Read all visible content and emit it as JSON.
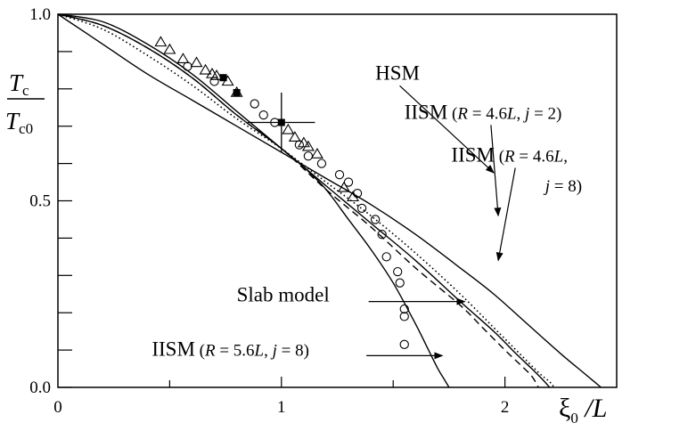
{
  "chart_data": {
    "type": "line",
    "xlabel_main": "ξ",
    "xlabel_sub": "0",
    "xlabel_tail": " /L",
    "ylabel_num_main": "T",
    "ylabel_num_sub": "c",
    "ylabel_den_main": "T",
    "ylabel_den_sub": "c0",
    "xlim": [
      0,
      2.5
    ],
    "ylim": [
      0,
      1.0
    ],
    "x_ticks": [
      {
        "value": 0,
        "label": "0"
      },
      {
        "value": 1,
        "label": "1"
      },
      {
        "value": 2,
        "label": "2"
      }
    ],
    "y_ticks": [
      {
        "value": 0.0,
        "label": "0.0"
      },
      {
        "value": 0.5,
        "label": "0.5"
      },
      {
        "value": 1.0,
        "label": "1.0"
      }
    ],
    "y_minor_ticks": [
      0.1,
      0.2,
      0.3,
      0.4,
      0.6,
      0.7,
      0.8,
      0.9
    ],
    "x_minor_ticks": [
      0.5,
      1.5
    ],
    "series": [
      {
        "name": "HSM",
        "style": "solid",
        "x": [
          0,
          0.2,
          0.4,
          0.6,
          0.8,
          1.0,
          1.2,
          1.4,
          1.6,
          1.8,
          1.95,
          2.1,
          2.25,
          2.35,
          2.4,
          2.43
        ],
        "y": [
          1.0,
          0.92,
          0.84,
          0.77,
          0.7,
          0.63,
          0.56,
          0.49,
          0.41,
          0.32,
          0.25,
          0.17,
          0.09,
          0.04,
          0.015,
          0.0
        ]
      },
      {
        "name": "IISM (R = 4.6L, j = 2)",
        "style": "dotted",
        "x": [
          0,
          0.2,
          0.4,
          0.6,
          0.8,
          1.0,
          1.2,
          1.4,
          1.6,
          1.8,
          1.95,
          2.05,
          2.15,
          2.2,
          2.22
        ],
        "y": [
          1.0,
          0.96,
          0.89,
          0.81,
          0.72,
          0.64,
          0.55,
          0.46,
          0.36,
          0.25,
          0.16,
          0.1,
          0.04,
          0.015,
          0.0
        ]
      },
      {
        "name": "IISM (R = 4.6L, j = 8)",
        "style": "solid",
        "x": [
          0,
          0.2,
          0.4,
          0.6,
          0.8,
          1.0,
          1.2,
          1.4,
          1.6,
          1.8,
          1.95,
          2.05,
          2.12,
          2.17,
          2.2
        ],
        "y": [
          1.0,
          0.97,
          0.91,
          0.83,
          0.73,
          0.64,
          0.54,
          0.44,
          0.34,
          0.23,
          0.15,
          0.09,
          0.05,
          0.02,
          0.0
        ]
      },
      {
        "name": "Slab model",
        "style": "dashed",
        "x": [
          0,
          0.2,
          0.4,
          0.6,
          0.8,
          1.0,
          1.2,
          1.4,
          1.6,
          1.8,
          1.9,
          2.0,
          2.07,
          2.12,
          2.15
        ],
        "y": [
          1.0,
          0.97,
          0.91,
          0.83,
          0.73,
          0.64,
          0.53,
          0.43,
          0.32,
          0.22,
          0.16,
          0.1,
          0.06,
          0.03,
          0.0
        ]
      },
      {
        "name": "IISM (R = 5.6L, j = 8)",
        "style": "solid",
        "x": [
          0,
          0.2,
          0.4,
          0.6,
          0.8,
          1.0,
          1.1,
          1.2,
          1.3,
          1.4,
          1.5,
          1.6,
          1.65,
          1.7,
          1.73,
          1.75
        ],
        "y": [
          1.0,
          0.98,
          0.92,
          0.84,
          0.74,
          0.64,
          0.59,
          0.53,
          0.45,
          0.37,
          0.28,
          0.17,
          0.11,
          0.05,
          0.02,
          0.0
        ]
      }
    ],
    "circles": [
      {
        "x": 0.58,
        "y": 0.86
      },
      {
        "x": 0.7,
        "y": 0.82
      },
      {
        "x": 0.88,
        "y": 0.76
      },
      {
        "x": 0.92,
        "y": 0.73
      },
      {
        "x": 0.97,
        "y": 0.71
      },
      {
        "x": 1.08,
        "y": 0.65
      },
      {
        "x": 1.12,
        "y": 0.62
      },
      {
        "x": 1.18,
        "y": 0.6
      },
      {
        "x": 1.26,
        "y": 0.57
      },
      {
        "x": 1.3,
        "y": 0.55
      },
      {
        "x": 1.34,
        "y": 0.52
      },
      {
        "x": 1.36,
        "y": 0.48
      },
      {
        "x": 1.42,
        "y": 0.45
      },
      {
        "x": 1.45,
        "y": 0.41
      },
      {
        "x": 1.47,
        "y": 0.35
      },
      {
        "x": 1.52,
        "y": 0.31
      },
      {
        "x": 1.53,
        "y": 0.28
      },
      {
        "x": 1.55,
        "y": 0.21
      },
      {
        "x": 1.55,
        "y": 0.19
      },
      {
        "x": 1.55,
        "y": 0.115
      }
    ],
    "triangles": [
      {
        "x": 0.46,
        "y": 0.925
      },
      {
        "x": 0.5,
        "y": 0.905
      },
      {
        "x": 0.56,
        "y": 0.88
      },
      {
        "x": 0.62,
        "y": 0.87
      },
      {
        "x": 0.66,
        "y": 0.85
      },
      {
        "x": 0.69,
        "y": 0.84
      },
      {
        "x": 0.71,
        "y": 0.835
      },
      {
        "x": 0.76,
        "y": 0.82
      },
      {
        "x": 0.8,
        "y": 0.79
      },
      {
        "x": 1.03,
        "y": 0.69
      },
      {
        "x": 1.06,
        "y": 0.67
      },
      {
        "x": 1.1,
        "y": 0.655
      },
      {
        "x": 1.12,
        "y": 0.645
      },
      {
        "x": 1.16,
        "y": 0.625
      },
      {
        "x": 1.28,
        "y": 0.535
      },
      {
        "x": 1.32,
        "y": 0.51
      }
    ],
    "squares": [
      {
        "x": 0.74,
        "y": 0.83
      },
      {
        "x": 0.8,
        "y": 0.79
      },
      {
        "x": 1.0,
        "y": 0.71
      }
    ],
    "errorbar": {
      "x": 1.0,
      "y": 0.71,
      "xerr": 0.15,
      "yerr": 0.08
    },
    "annotations": [
      {
        "segments": [
          {
            "text": "HSM",
            "style": "normal"
          }
        ],
        "label_x": 1.42,
        "label_y": 0.825,
        "arrow_to_x": 1.95,
        "arrow_to_y": 0.575
      },
      {
        "segments": [
          {
            "text": "IISM",
            "style": "normal"
          },
          {
            "text": " (",
            "style": "small"
          },
          {
            "text": "R",
            "style": "italic"
          },
          {
            "text": " = 4.6",
            "style": "small"
          },
          {
            "text": "L",
            "style": "italic"
          },
          {
            "text": ", ",
            "style": "small"
          },
          {
            "text": "j",
            "style": "italic"
          },
          {
            "text": " = 2)",
            "style": "small"
          }
        ],
        "label_x": 1.55,
        "label_y": 0.72,
        "arrow_to_x": 1.97,
        "arrow_to_y": 0.46
      },
      {
        "segments": [
          {
            "text": "IISM",
            "style": "normal"
          },
          {
            "text": " (",
            "style": "small"
          },
          {
            "text": "R",
            "style": "italic"
          },
          {
            "text": " = 4.6",
            "style": "small"
          },
          {
            "text": "L",
            "style": "italic"
          },
          {
            "text": ",",
            "style": "small"
          }
        ],
        "label_x": 1.76,
        "label_y": 0.605,
        "arrow_to_x": 1.97,
        "arrow_to_y": 0.34
      },
      {
        "segments": [
          {
            "text": "j",
            "style": "italic"
          },
          {
            "text": " = 8)",
            "style": "small"
          }
        ],
        "label_x": 2.18,
        "label_y": 0.525
      },
      {
        "segments": [
          {
            "text": "Slab model",
            "style": "normal"
          }
        ],
        "label_x": 0.8,
        "label_y": 0.23,
        "arrow_from_x": 1.39,
        "arrow_from_y": 0.23,
        "arrow_to_x": 1.82,
        "arrow_to_y": 0.23
      },
      {
        "segments": [
          {
            "text": "IISM",
            "style": "normal"
          },
          {
            "text": " (",
            "style": "small"
          },
          {
            "text": "R",
            "style": "italic"
          },
          {
            "text": " = 5.6",
            "style": "small"
          },
          {
            "text": "L",
            "style": "italic"
          },
          {
            "text": ", ",
            "style": "small"
          },
          {
            "text": "j",
            "style": "italic"
          },
          {
            "text": " = 8)",
            "style": "small"
          }
        ],
        "label_x": 0.42,
        "label_y": 0.085,
        "arrow_from_x": 1.38,
        "arrow_from_y": 0.085,
        "arrow_to_x": 1.72,
        "arrow_to_y": 0.085
      }
    ]
  }
}
